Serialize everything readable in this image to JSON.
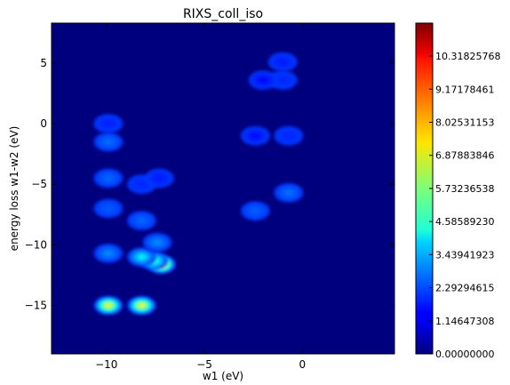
{
  "chart_data": {
    "type": "heatmap",
    "title": "RIXS_coll_iso",
    "xlabel": "w1 (eV)",
    "ylabel": "energy loss w1-w2 (eV)",
    "xlim": [
      -12.8,
      4.7
    ],
    "ylim": [
      -19.0,
      8.3
    ],
    "xticks": [
      {
        "value": -10,
        "label": "−10"
      },
      {
        "value": -5,
        "label": "−5"
      },
      {
        "value": 0,
        "label": "0"
      }
    ],
    "yticks": [
      {
        "value": 5,
        "label": "5"
      },
      {
        "value": 0,
        "label": "0"
      },
      {
        "value": -5,
        "label": "−5"
      },
      {
        "value": -10,
        "label": "−10"
      },
      {
        "value": -15,
        "label": "−15"
      }
    ],
    "colorbar": {
      "min": 0.0,
      "max": 11.46,
      "colormap": "jet",
      "tick_labels": [
        {
          "value": 0.0,
          "label": "0.00000000"
        },
        {
          "value": 1.14647308,
          "label": "1.14647308"
        },
        {
          "value": 2.29294615,
          "label": "2.29294615"
        },
        {
          "value": 3.43941923,
          "label": "3.43941923"
        },
        {
          "value": 4.5858923,
          "label": "4.58589230"
        },
        {
          "value": 5.73236538,
          "label": "5.73236538"
        },
        {
          "value": 6.87883846,
          "label": "6.87883846"
        },
        {
          "value": 8.02531153,
          "label": "8.02531153"
        },
        {
          "value": 9.17178461,
          "label": "9.17178461"
        },
        {
          "value": 10.31825768,
          "label": "10.31825768"
        }
      ]
    },
    "peaks": [
      {
        "x": -9.9,
        "y": -15.0,
        "value": 8.0
      },
      {
        "x": -8.2,
        "y": -15.0,
        "value": 8.0
      },
      {
        "x": -7.2,
        "y": -11.6,
        "value": 9.3
      },
      {
        "x": -7.6,
        "y": -11.3,
        "value": 5.5
      },
      {
        "x": -8.2,
        "y": -11.0,
        "value": 4.5
      },
      {
        "x": -9.9,
        "y": -10.7,
        "value": 3.0
      },
      {
        "x": -7.4,
        "y": -9.8,
        "value": 3.0
      },
      {
        "x": -8.2,
        "y": -8.0,
        "value": 2.5
      },
      {
        "x": -9.9,
        "y": -7.0,
        "value": 2.3
      },
      {
        "x": -9.9,
        "y": -4.5,
        "value": 2.5
      },
      {
        "x": -9.9,
        "y": -1.5,
        "value": 2.6
      },
      {
        "x": -9.9,
        "y": 0.0,
        "value": 1.5
      },
      {
        "x": -8.2,
        "y": -5.0,
        "value": 1.6
      },
      {
        "x": -7.3,
        "y": -4.5,
        "value": 1.4
      },
      {
        "x": -2.4,
        "y": -7.2,
        "value": 2.4
      },
      {
        "x": -0.7,
        "y": -5.7,
        "value": 2.6
      },
      {
        "x": -0.7,
        "y": -1.0,
        "value": 1.6
      },
      {
        "x": -2.4,
        "y": -1.0,
        "value": 1.2
      },
      {
        "x": -1.0,
        "y": 3.6,
        "value": 1.6
      },
      {
        "x": -2.0,
        "y": 3.6,
        "value": 1.1
      },
      {
        "x": -1.0,
        "y": 5.1,
        "value": 1.4
      }
    ]
  }
}
